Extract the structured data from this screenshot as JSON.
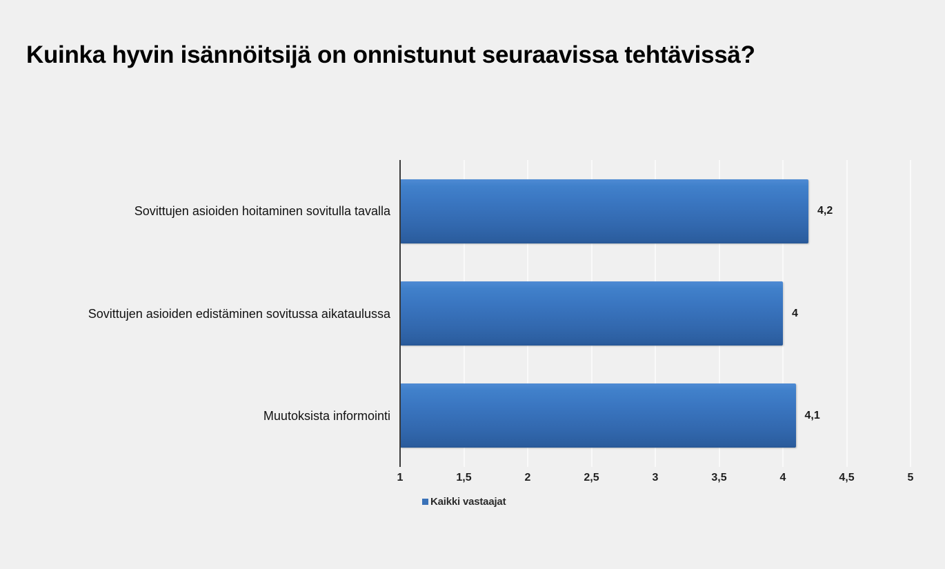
{
  "chart_data": {
    "type": "bar",
    "orientation": "horizontal",
    "title": "Kuinka hyvin isännöitsijä on onnistunut seuraavissa tehtävissä?",
    "categories": [
      "Sovittujen asioiden hoitaminen sovitulla tavalla",
      "Sovittujen asioiden edistäminen sovitussa aikataulussa",
      "Muutoksista informointi"
    ],
    "series": [
      {
        "name": "Kaikki vastaajat",
        "values": [
          4.2,
          4,
          4.1
        ],
        "value_labels": [
          "4,2",
          "4",
          "4,1"
        ],
        "color": "#3a74c0"
      }
    ],
    "xlim": [
      1,
      5
    ],
    "xticks": [
      1,
      1.5,
      2,
      2.5,
      3,
      3.5,
      4,
      4.5,
      5
    ],
    "xtick_labels": [
      "1",
      "1,5",
      "2",
      "2,5",
      "3",
      "3,5",
      "4",
      "4,5",
      "5"
    ],
    "grid": true,
    "legend": {
      "position": "bottom-left",
      "entries": [
        {
          "label": "Kaikki vastaajat",
          "color": "#3a72b8"
        }
      ]
    }
  },
  "colors": {
    "background": "#f0f0f0",
    "bar_gradient_top": "#4f8bd4",
    "bar_gradient_bottom": "#285795",
    "axis_line": "#3a3a3a",
    "gridline": "#fafafa",
    "text": "#1a1a1a"
  }
}
